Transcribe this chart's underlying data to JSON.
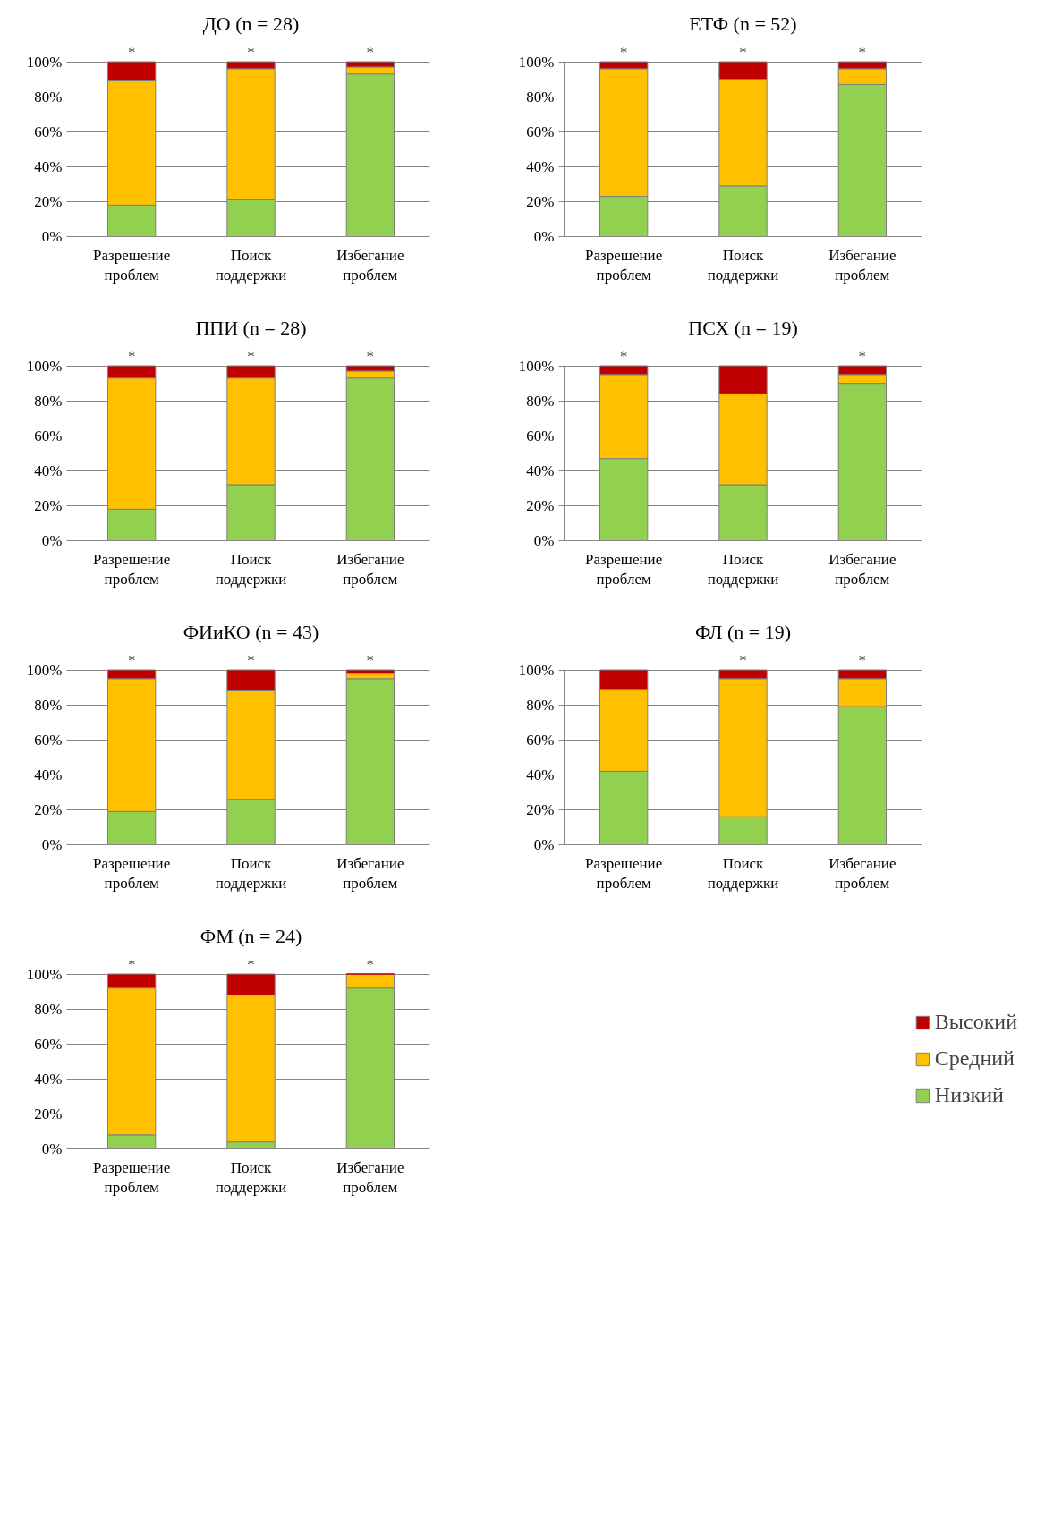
{
  "chart_data": [
    {
      "type": "bar",
      "stacked": true,
      "title": "ДО (n = 28)",
      "categories": [
        "Разрешение проблем",
        "Поиск поддержки",
        "Избегание проблем"
      ],
      "series": [
        {
          "color": "#92d050",
          "values": [
            18,
            21,
            93
          ]
        },
        {
          "color": "#ffc000",
          "values": [
            71,
            75,
            4
          ]
        },
        {
          "color": "#c00000",
          "values": [
            11,
            4,
            3
          ]
        }
      ],
      "ylim": [
        0,
        100
      ],
      "yticks": [
        {
          "value": 0,
          "label": "0%"
        },
        {
          "value": 20,
          "label": "20%"
        },
        {
          "value": 40,
          "label": "40%"
        },
        {
          "value": 60,
          "label": "60%"
        },
        {
          "value": 80,
          "label": "80%"
        },
        {
          "value": 100,
          "label": "100%"
        }
      ],
      "grid": "y",
      "annotations": [
        {
          "text": "*",
          "x": "Разрешение проблем",
          "y": 100
        },
        {
          "text": "*",
          "x": "Поиск поддержки",
          "y": 100
        },
        {
          "text": "*",
          "x": "Избегание проблем",
          "y": 100
        }
      ]
    },
    {
      "type": "bar",
      "stacked": true,
      "title": "ЕТФ (n = 52)",
      "categories": [
        "Разрешение проблем",
        "Поиск поддержки",
        "Избегание проблем"
      ],
      "series": [
        {
          "color": "#92d050",
          "values": [
            23,
            29,
            87
          ]
        },
        {
          "color": "#ffc000",
          "values": [
            73,
            61,
            9
          ]
        },
        {
          "color": "#c00000",
          "values": [
            4,
            10,
            4
          ]
        }
      ],
      "ylim": [
        0,
        100
      ],
      "yticks": [
        {
          "value": 0,
          "label": "0%"
        },
        {
          "value": 20,
          "label": "20%"
        },
        {
          "value": 40,
          "label": "40%"
        },
        {
          "value": 60,
          "label": "60%"
        },
        {
          "value": 80,
          "label": "80%"
        },
        {
          "value": 100,
          "label": "100%"
        }
      ],
      "grid": "y",
      "annotations": [
        {
          "text": "*",
          "x": "Разрешение проблем",
          "y": 100
        },
        {
          "text": "*",
          "x": "Поиск поддержки",
          "y": 100
        },
        {
          "text": "*",
          "x": "Избегание проблем",
          "y": 100
        }
      ]
    },
    {
      "type": "bar",
      "stacked": true,
      "title": "ППИ (n = 28)",
      "categories": [
        "Разрешение проблем",
        "Поиск поддержки",
        "Избегание проблем"
      ],
      "series": [
        {
          "color": "#92d050",
          "values": [
            18,
            32,
            93
          ]
        },
        {
          "color": "#ffc000",
          "values": [
            75,
            61,
            4
          ]
        },
        {
          "color": "#c00000",
          "values": [
            7,
            7,
            3
          ]
        }
      ],
      "ylim": [
        0,
        100
      ],
      "yticks": [
        {
          "value": 0,
          "label": "0%"
        },
        {
          "value": 20,
          "label": "20%"
        },
        {
          "value": 40,
          "label": "40%"
        },
        {
          "value": 60,
          "label": "60%"
        },
        {
          "value": 80,
          "label": "80%"
        },
        {
          "value": 100,
          "label": "100%"
        }
      ],
      "grid": "y",
      "annotations": [
        {
          "text": "*",
          "x": "Разрешение проблем",
          "y": 100
        },
        {
          "text": "*",
          "x": "Поиск поддержки",
          "y": 100
        },
        {
          "text": "*",
          "x": "Избегание проблем",
          "y": 100
        }
      ]
    },
    {
      "type": "bar",
      "stacked": true,
      "title": "ПСХ (n = 19)",
      "categories": [
        "Разрешение проблем",
        "Поиск поддержки",
        "Избегание проблем"
      ],
      "series": [
        {
          "color": "#92d050",
          "values": [
            47,
            32,
            90
          ]
        },
        {
          "color": "#ffc000",
          "values": [
            48,
            52,
            5
          ]
        },
        {
          "color": "#c00000",
          "values": [
            5,
            16,
            5
          ]
        }
      ],
      "ylim": [
        0,
        100
      ],
      "yticks": [
        {
          "value": 0,
          "label": "0%"
        },
        {
          "value": 20,
          "label": "20%"
        },
        {
          "value": 40,
          "label": "40%"
        },
        {
          "value": 60,
          "label": "60%"
        },
        {
          "value": 80,
          "label": "80%"
        },
        {
          "value": 100,
          "label": "100%"
        }
      ],
      "grid": "y",
      "annotations": [
        {
          "text": "*",
          "x": "Разрешение проблем",
          "y": 100
        },
        {
          "text": "*",
          "x": "Избегание проблем",
          "y": 100
        }
      ]
    },
    {
      "type": "bar",
      "stacked": true,
      "title": "ФИиКО (n = 43)",
      "categories": [
        "Разрешение проблем",
        "Поиск поддержки",
        "Избегание проблем"
      ],
      "series": [
        {
          "color": "#92d050",
          "values": [
            19,
            26,
            95
          ]
        },
        {
          "color": "#ffc000",
          "values": [
            76,
            62,
            3
          ]
        },
        {
          "color": "#c00000",
          "values": [
            5,
            12,
            2
          ]
        }
      ],
      "ylim": [
        0,
        100
      ],
      "yticks": [
        {
          "value": 0,
          "label": "0%"
        },
        {
          "value": 20,
          "label": "20%"
        },
        {
          "value": 40,
          "label": "40%"
        },
        {
          "value": 60,
          "label": "60%"
        },
        {
          "value": 80,
          "label": "80%"
        },
        {
          "value": 100,
          "label": "100%"
        }
      ],
      "grid": "y",
      "annotations": [
        {
          "text": "*",
          "x": "Разрешение проблем",
          "y": 100
        },
        {
          "text": "*",
          "x": "Поиск поддержки",
          "y": 100
        },
        {
          "text": "*",
          "x": "Избегание проблем",
          "y": 100
        }
      ]
    },
    {
      "type": "bar",
      "stacked": true,
      "title": "ФЛ (n = 19)",
      "categories": [
        "Разрешение проблем",
        "Поиск поддержки",
        "Избегание проблем"
      ],
      "series": [
        {
          "color": "#92d050",
          "values": [
            42,
            16,
            79
          ]
        },
        {
          "color": "#ffc000",
          "values": [
            47,
            79,
            16
          ]
        },
        {
          "color": "#c00000",
          "values": [
            11,
            5,
            5
          ]
        }
      ],
      "ylim": [
        0,
        100
      ],
      "yticks": [
        {
          "value": 0,
          "label": "0%"
        },
        {
          "value": 20,
          "label": "20%"
        },
        {
          "value": 40,
          "label": "40%"
        },
        {
          "value": 60,
          "label": "60%"
        },
        {
          "value": 80,
          "label": "80%"
        },
        {
          "value": 100,
          "label": "100%"
        }
      ],
      "grid": "y",
      "annotations": [
        {
          "text": "*",
          "x": "Поиск поддержки",
          "y": 100
        },
        {
          "text": "*",
          "x": "Избегание проблем",
          "y": 100
        }
      ]
    },
    {
      "type": "bar",
      "stacked": true,
      "title": "ФМ (n = 24)",
      "categories": [
        "Разрешение проблем",
        "Поиск поддержки",
        "Избегание проблем"
      ],
      "series": [
        {
          "name": "Низкий",
          "color": "#92d050",
          "values": [
            8,
            4,
            92
          ]
        },
        {
          "name": "Средний",
          "color": "#ffc000",
          "values": [
            84,
            84,
            8
          ]
        },
        {
          "name": "Высокий",
          "color": "#c00000",
          "values": [
            8,
            12,
            0
          ]
        }
      ],
      "ylim": [
        0,
        100
      ],
      "yticks": [
        {
          "value": 0,
          "label": "0%"
        },
        {
          "value": 20,
          "label": "20%"
        },
        {
          "value": 40,
          "label": "40%"
        },
        {
          "value": 60,
          "label": "60%"
        },
        {
          "value": 80,
          "label": "80%"
        },
        {
          "value": 100,
          "label": "100%"
        }
      ],
      "grid": "y",
      "legend": "right",
      "annotations": [
        {
          "text": "*",
          "x": "Разрешение проблем",
          "y": 100
        },
        {
          "text": "*",
          "x": "Поиск поддержки",
          "y": 100
        },
        {
          "text": "*",
          "x": "Избегание проблем",
          "y": 100
        }
      ]
    }
  ]
}
